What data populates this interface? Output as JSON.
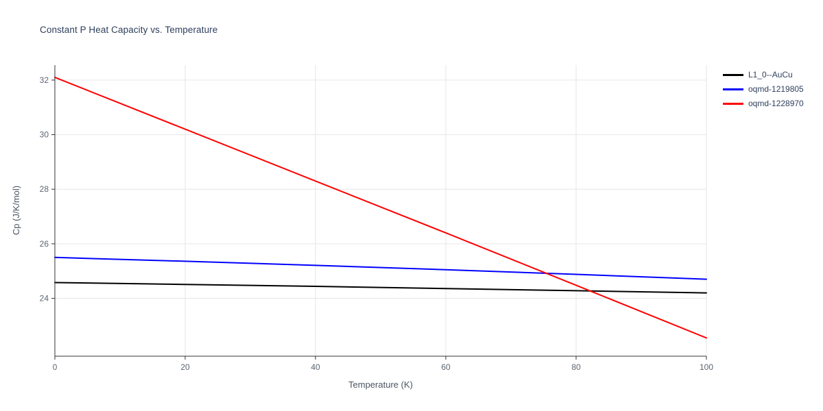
{
  "chart_data": {
    "type": "line",
    "title": "Constant P Heat Capacity vs. Temperature",
    "xlabel": "Temperature (K)",
    "ylabel": "Cp (J/K/mol)",
    "xlim": [
      0,
      100
    ],
    "ylim": [
      21.88,
      32.55
    ],
    "xticks": [
      0,
      20,
      40,
      60,
      80,
      100
    ],
    "yticks": [
      24,
      26,
      28,
      30,
      32
    ],
    "grid": true,
    "legend_position": "top-right-outside",
    "title_color": "#2e3f5c",
    "series": [
      {
        "name": "L1_0--AuCu",
        "color": "#000000",
        "x": [
          0,
          20,
          40,
          60,
          80,
          100
        ],
        "y": [
          24.58,
          24.51,
          24.44,
          24.36,
          24.28,
          24.2
        ]
      },
      {
        "name": "oqmd-1219805",
        "color": "#0000ff",
        "x": [
          0,
          20,
          40,
          60,
          80,
          100
        ],
        "y": [
          25.5,
          25.36,
          25.21,
          25.05,
          24.88,
          24.7
        ]
      },
      {
        "name": "oqmd-1228970",
        "color": "#ff0000",
        "x": [
          0,
          20,
          40,
          60,
          80,
          100
        ],
        "y": [
          32.1,
          30.2,
          28.3,
          26.4,
          24.48,
          22.55
        ]
      }
    ]
  }
}
